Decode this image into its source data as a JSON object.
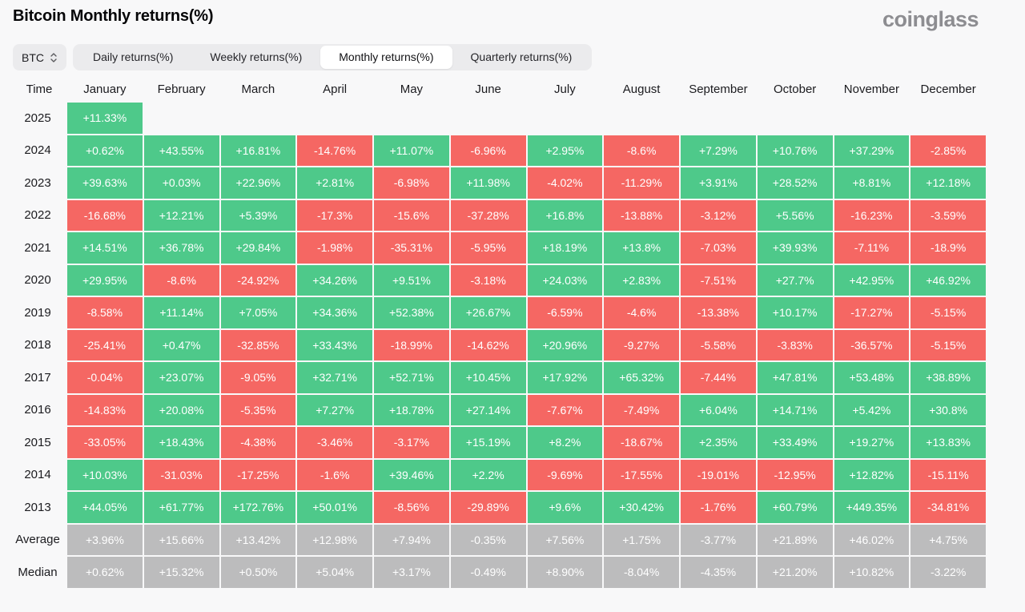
{
  "page": {
    "title": "Bitcoin Monthly returns(%)",
    "logo_text": "coinglass"
  },
  "controls": {
    "coin_selector": {
      "label": "BTC"
    },
    "tabs": [
      {
        "label": "Daily returns(%)",
        "active": false
      },
      {
        "label": "Weekly returns(%)",
        "active": false
      },
      {
        "label": "Monthly returns(%)",
        "active": true
      },
      {
        "label": "Quarterly returns(%)",
        "active": false
      }
    ]
  },
  "colors": {
    "positive": "#4ec98a",
    "negative": "#f56763",
    "neutral": "#bcbcbd",
    "page_bg": "#f8f8f9",
    "control_bg": "#ebebed"
  },
  "chart_data": {
    "type": "heatmap",
    "title": "Bitcoin Monthly returns(%)",
    "legend_rule": "green = positive monthly return, red = negative monthly return, gray = Average/Median summary rows, blank = no data",
    "columns": [
      "Time",
      "January",
      "February",
      "March",
      "April",
      "May",
      "June",
      "July",
      "August",
      "September",
      "October",
      "November",
      "December"
    ],
    "rows": [
      {
        "label": "2025",
        "kind": "year",
        "values": [
          "+11.33%",
          "",
          "",
          "",
          "",
          "",
          "",
          "",
          "",
          "",
          "",
          ""
        ]
      },
      {
        "label": "2024",
        "kind": "year",
        "values": [
          "+0.62%",
          "+43.55%",
          "+16.81%",
          "-14.76%",
          "+11.07%",
          "-6.96%",
          "+2.95%",
          "-8.6%",
          "+7.29%",
          "+10.76%",
          "+37.29%",
          "-2.85%"
        ]
      },
      {
        "label": "2023",
        "kind": "year",
        "values": [
          "+39.63%",
          "+0.03%",
          "+22.96%",
          "+2.81%",
          "-6.98%",
          "+11.98%",
          "-4.02%",
          "-11.29%",
          "+3.91%",
          "+28.52%",
          "+8.81%",
          "+12.18%"
        ]
      },
      {
        "label": "2022",
        "kind": "year",
        "values": [
          "-16.68%",
          "+12.21%",
          "+5.39%",
          "-17.3%",
          "-15.6%",
          "-37.28%",
          "+16.8%",
          "-13.88%",
          "-3.12%",
          "+5.56%",
          "-16.23%",
          "-3.59%"
        ]
      },
      {
        "label": "2021",
        "kind": "year",
        "values": [
          "+14.51%",
          "+36.78%",
          "+29.84%",
          "-1.98%",
          "-35.31%",
          "-5.95%",
          "+18.19%",
          "+13.8%",
          "-7.03%",
          "+39.93%",
          "-7.11%",
          "-18.9%"
        ]
      },
      {
        "label": "2020",
        "kind": "year",
        "values": [
          "+29.95%",
          "-8.6%",
          "-24.92%",
          "+34.26%",
          "+9.51%",
          "-3.18%",
          "+24.03%",
          "+2.83%",
          "-7.51%",
          "+27.7%",
          "+42.95%",
          "+46.92%"
        ]
      },
      {
        "label": "2019",
        "kind": "year",
        "values": [
          "-8.58%",
          "+11.14%",
          "+7.05%",
          "+34.36%",
          "+52.38%",
          "+26.67%",
          "-6.59%",
          "-4.6%",
          "-13.38%",
          "+10.17%",
          "-17.27%",
          "-5.15%"
        ]
      },
      {
        "label": "2018",
        "kind": "year",
        "values": [
          "-25.41%",
          "+0.47%",
          "-32.85%",
          "+33.43%",
          "-18.99%",
          "-14.62%",
          "+20.96%",
          "-9.27%",
          "-5.58%",
          "-3.83%",
          "-36.57%",
          "-5.15%"
        ]
      },
      {
        "label": "2017",
        "kind": "year",
        "values": [
          "-0.04%",
          "+23.07%",
          "-9.05%",
          "+32.71%",
          "+52.71%",
          "+10.45%",
          "+17.92%",
          "+65.32%",
          "-7.44%",
          "+47.81%",
          "+53.48%",
          "+38.89%"
        ]
      },
      {
        "label": "2016",
        "kind": "year",
        "values": [
          "-14.83%",
          "+20.08%",
          "-5.35%",
          "+7.27%",
          "+18.78%",
          "+27.14%",
          "-7.67%",
          "-7.49%",
          "+6.04%",
          "+14.71%",
          "+5.42%",
          "+30.8%"
        ]
      },
      {
        "label": "2015",
        "kind": "year",
        "values": [
          "-33.05%",
          "+18.43%",
          "-4.38%",
          "-3.46%",
          "-3.17%",
          "+15.19%",
          "+8.2%",
          "-18.67%",
          "+2.35%",
          "+33.49%",
          "+19.27%",
          "+13.83%"
        ]
      },
      {
        "label": "2014",
        "kind": "year",
        "values": [
          "+10.03%",
          "-31.03%",
          "-17.25%",
          "-1.6%",
          "+39.46%",
          "+2.2%",
          "-9.69%",
          "-17.55%",
          "-19.01%",
          "-12.95%",
          "+12.82%",
          "-15.11%"
        ]
      },
      {
        "label": "2013",
        "kind": "year",
        "values": [
          "+44.05%",
          "+61.77%",
          "+172.76%",
          "+50.01%",
          "-8.56%",
          "-29.89%",
          "+9.6%",
          "+30.42%",
          "-1.76%",
          "+60.79%",
          "+449.35%",
          "-34.81%"
        ]
      },
      {
        "label": "Average",
        "kind": "summary",
        "values": [
          "+3.96%",
          "+15.66%",
          "+13.42%",
          "+12.98%",
          "+7.94%",
          "-0.35%",
          "+7.56%",
          "+1.75%",
          "-3.77%",
          "+21.89%",
          "+46.02%",
          "+4.75%"
        ]
      },
      {
        "label": "Median",
        "kind": "summary",
        "values": [
          "+0.62%",
          "+15.32%",
          "+0.50%",
          "+5.04%",
          "+3.17%",
          "-0.49%",
          "+8.90%",
          "-8.04%",
          "-4.35%",
          "+21.20%",
          "+10.82%",
          "-3.22%"
        ]
      }
    ]
  }
}
